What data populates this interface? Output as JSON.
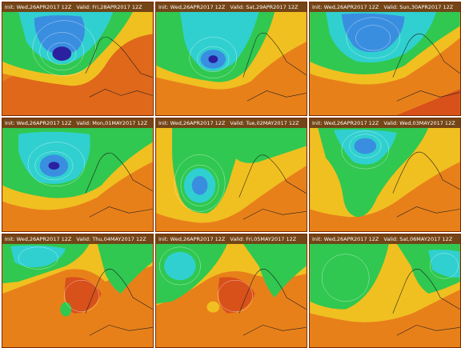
{
  "panels": [
    {
      "init": "Init: Wed,26APR2017 12Z",
      "valid": "Valid: Fri,28APR2017 12Z"
    },
    {
      "init": "Init: Wed,26APR2017 12Z",
      "valid": "Valid: Sat,29APR2017 12Z"
    },
    {
      "init": "Init: Wed,26APR2017 12Z",
      "valid": "Valid: Sun,30APR2017 12Z"
    },
    {
      "init": "Init: Wed,26APR2017 12Z",
      "valid": "Valid: Mon,01MAY2017 12Z"
    },
    {
      "init": "Init: Wed,26APR2017 12Z",
      "valid": "Valid: Tue,02MAY2017 12Z"
    },
    {
      "init": "Init: Wed,26APR2017 12Z",
      "valid": "Valid: Wed,03MAY2017 12Z"
    },
    {
      "init": "Init: Wed,26APR2017 12Z",
      "valid": "Valid: Thu,04MAY2017 12Z"
    },
    {
      "init": "Init: Wed,26APR2017 12Z",
      "valid": "Valid: Fri,05MAY2017 12Z"
    },
    {
      "init": "Init: Wed,26APR2017 12Z",
      "valid": "Valid: Sat,06MAY2017 12Z"
    }
  ],
  "colors": {
    "deep_low": "#2a20a0",
    "blue": "#3a8ee0",
    "cyan": "#30d0d0",
    "green": "#30c850",
    "yellow_green": "#b8d020",
    "yellow": "#f0c020",
    "orange": "#e8801a",
    "red_orange": "#d8501a",
    "coast": "#202020"
  }
}
